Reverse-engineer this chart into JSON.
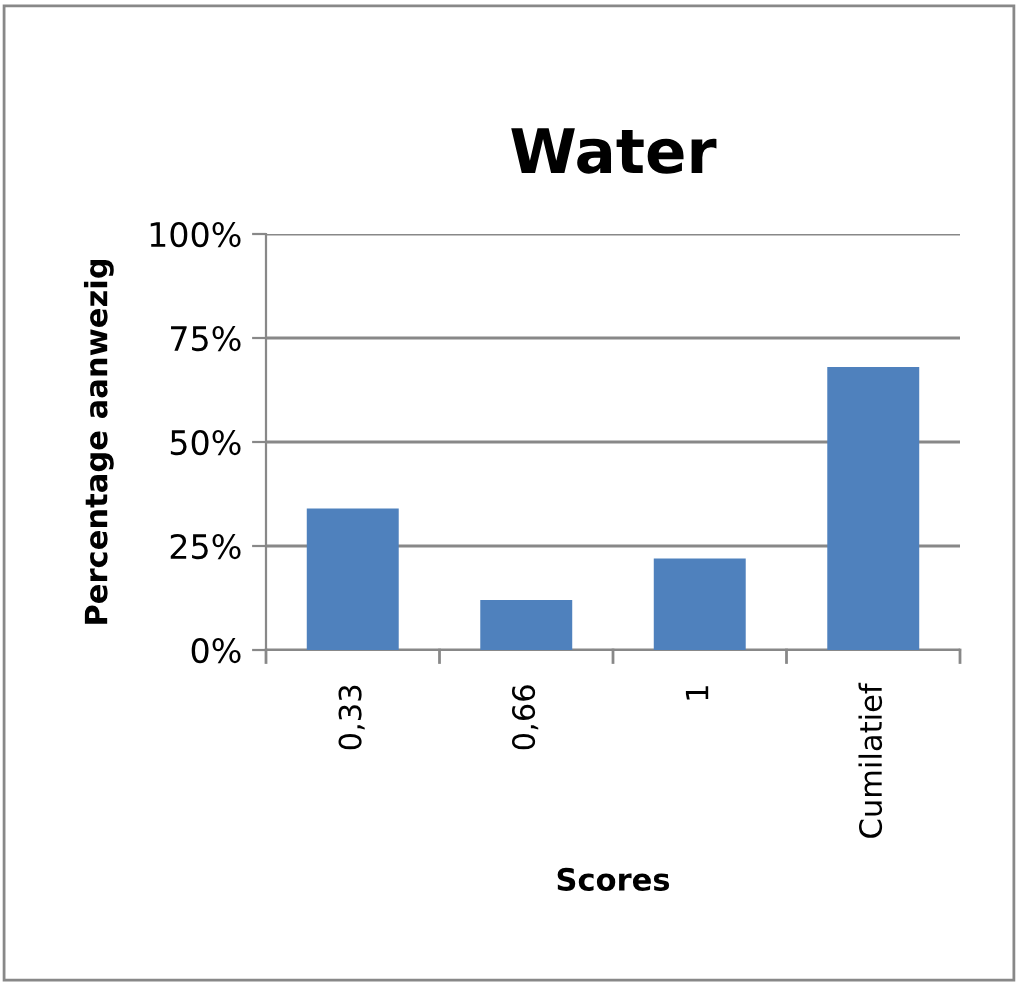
{
  "chart_data": {
    "type": "bar",
    "title": "Water",
    "xlabel": "Scores",
    "ylabel": "Percentage aanwezig",
    "categories": [
      "0,33",
      "0,66",
      "1",
      "Cumilatief"
    ],
    "values": [
      34,
      12,
      22,
      68
    ],
    "color": "#4f81bd",
    "ylim": [
      0,
      100
    ],
    "yticks": [
      {
        "value": 0,
        "label": "0%"
      },
      {
        "value": 25,
        "label": "25%"
      },
      {
        "value": 50,
        "label": "50%"
      },
      {
        "value": 75,
        "label": "75%"
      },
      {
        "value": 100,
        "label": "100%"
      }
    ],
    "grid": "y",
    "legend": false
  }
}
